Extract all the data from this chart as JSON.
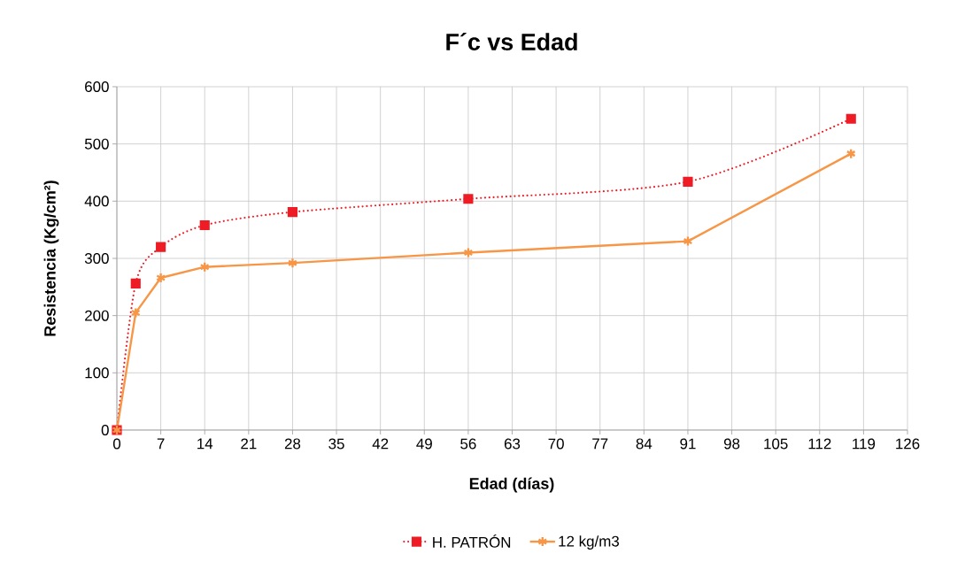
{
  "chart_data": {
    "type": "line",
    "title": "F´c vs Edad",
    "xlabel": "Edad (días)",
    "ylabel": "Resistencia (Kg/cm²)",
    "x": [
      0,
      3,
      7,
      14,
      28,
      56,
      91,
      117
    ],
    "series": [
      {
        "name": "H. PATRÓN",
        "color": "#ee1c25",
        "marker": "square",
        "line_style": "dotted",
        "values": [
          0,
          256,
          320,
          358,
          381,
          404,
          434,
          544
        ]
      },
      {
        "name": "12 kg/m3",
        "color": "#f79646",
        "marker": "cross",
        "line_style": "solid",
        "values": [
          0,
          205,
          266,
          285,
          292,
          310,
          330,
          483
        ]
      }
    ],
    "xlim": [
      0,
      126
    ],
    "xticks": [
      0,
      7,
      14,
      21,
      28,
      35,
      42,
      49,
      56,
      63,
      70,
      77,
      84,
      91,
      98,
      105,
      112,
      119,
      126
    ],
    "ylim": [
      0,
      600
    ],
    "yticks": [
      0,
      100,
      200,
      300,
      400,
      500,
      600
    ],
    "grid": true,
    "legend": "bottom"
  }
}
